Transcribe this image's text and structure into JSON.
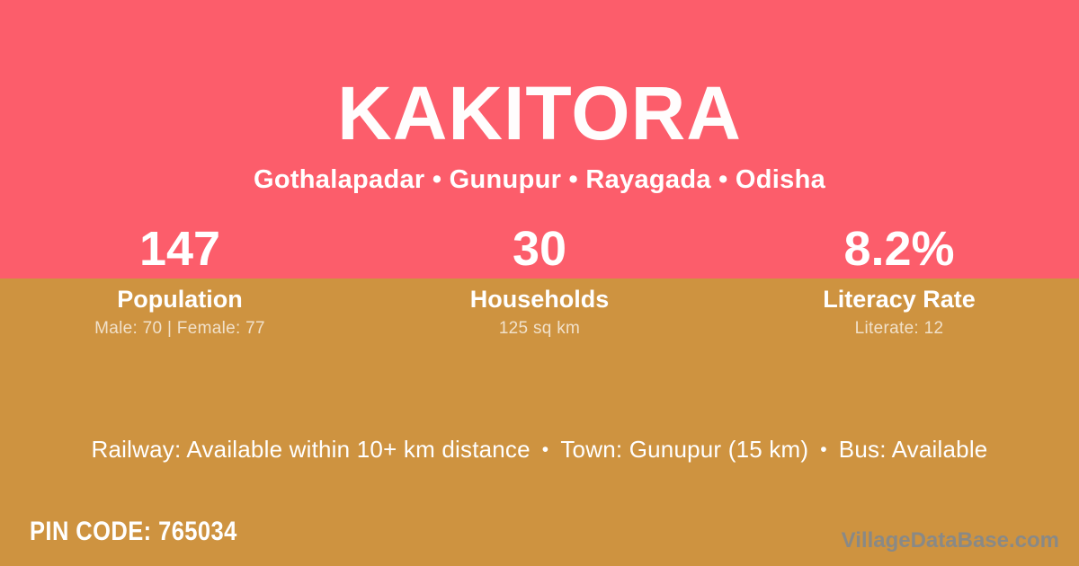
{
  "page": {
    "title": "KAKITORA",
    "location_line": "Gothalapadar • Gunupur • Rayagada • Odisha",
    "location_parts": [
      "Gothalapadar",
      "Gunupur",
      "Rayagada",
      "Odisha"
    ]
  },
  "stats": [
    {
      "value": "147",
      "label": "Population",
      "detail": "Male: 70 | Female: 77"
    },
    {
      "value": "30",
      "label": "Households",
      "detail": "125 sq km"
    },
    {
      "value": "8.2%",
      "label": "Literacy Rate",
      "detail": "Literate: 12"
    }
  ],
  "transport": {
    "separator": "•",
    "items": [
      "Railway: Available within 10+ km distance",
      "Town: Gunupur (15 km)",
      "Bus: Available"
    ]
  },
  "footer": {
    "pin_code_line": "PIN CODE: 765034",
    "pin_code": "765034",
    "watermark": "VillageDataBase.com"
  },
  "colors": {
    "top_band": "#fc5d6b",
    "bottom_band": "#ce9340",
    "text": "#ffffff",
    "muted_text": "rgba(255,255,255,0.72)",
    "watermark_text": "#82898e"
  }
}
